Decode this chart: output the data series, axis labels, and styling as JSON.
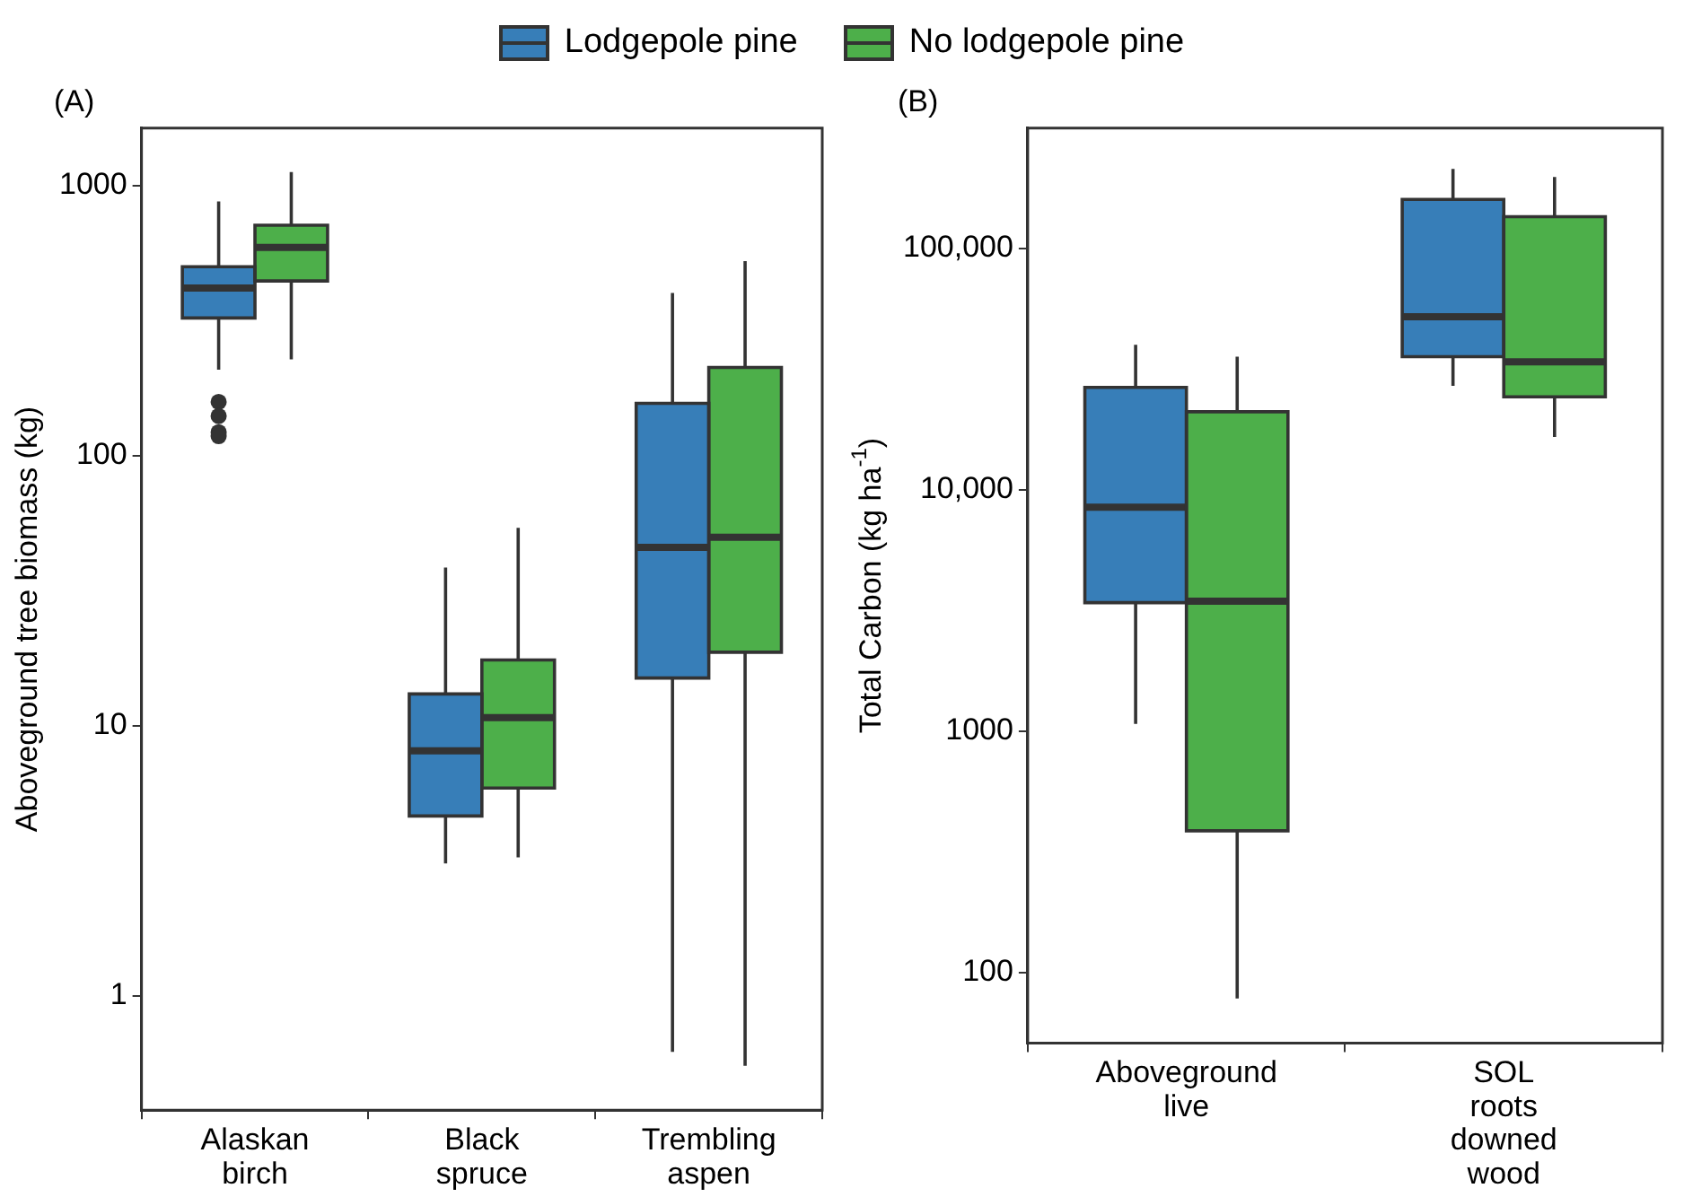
{
  "chart_data": [
    {
      "type": "box",
      "title": "(A)",
      "ylabel": "Aboveground tree biomass (kg)",
      "categories": [
        "Alaskan birch",
        "Black spruce",
        "Trembling aspen"
      ],
      "log": true,
      "ylim": [
        0.377,
        1630
      ],
      "yticks": [
        1,
        10,
        100,
        1000
      ],
      "grid": false,
      "legend": "top",
      "series": [
        {
          "name": "Lodgepole pine",
          "color": "#377eb8",
          "boxes": [
            {
              "low": 208,
              "q1": 323,
              "median": 417,
              "q3": 500,
              "high": 873,
              "outliers": [
                158,
                140,
                122,
                118
              ]
            },
            {
              "low": 3.09,
              "q1": 4.63,
              "median": 8.07,
              "q3": 13.1,
              "high": 38.5
            },
            {
              "low": 0.62,
              "q1": 15.0,
              "median": 45.7,
              "q3": 156,
              "high": 400
            }
          ]
        },
        {
          "name": "No lodgepole pine",
          "color": "#4daf4a",
          "boxes": [
            {
              "low": 227,
              "q1": 443,
              "median": 590,
              "q3": 712,
              "high": 1120
            },
            {
              "low": 3.25,
              "q1": 5.87,
              "median": 10.7,
              "q3": 17.5,
              "high": 54
            },
            {
              "low": 0.55,
              "q1": 18.7,
              "median": 49.8,
              "q3": 212,
              "high": 525
            }
          ]
        }
      ]
    },
    {
      "type": "box",
      "title": "(B)",
      "ylabel": "Total Carbon (kg ha$^{-1}$)",
      "categories": [
        "Aboveground live",
        "SOL roots downed wood"
      ],
      "log": true,
      "ylim": [
        51,
        314000
      ],
      "yticks": [
        100,
        1000,
        {
          "value": 10000,
          "label": "10,000"
        },
        {
          "value": 100000,
          "label": "100,000"
        }
      ],
      "grid": false,
      "series": [
        {
          "color": "#377eb8",
          "boxes": [
            {
              "low": 1070,
              "q1": 3400,
              "median": 8450,
              "q3": 26500,
              "high": 39800
            },
            {
              "low": 26900,
              "q1": 35500,
              "median": 52000,
              "q3": 159000,
              "high": 213000
            }
          ]
        },
        {
          "color": "#4daf4a",
          "boxes": [
            {
              "low": 78,
              "q1": 386,
              "median": 3450,
              "q3": 21000,
              "high": 35500
            },
            {
              "low": 16500,
              "q1": 24200,
              "median": 33800,
              "q3": 135000,
              "high": 197000
            }
          ]
        }
      ]
    }
  ]
}
